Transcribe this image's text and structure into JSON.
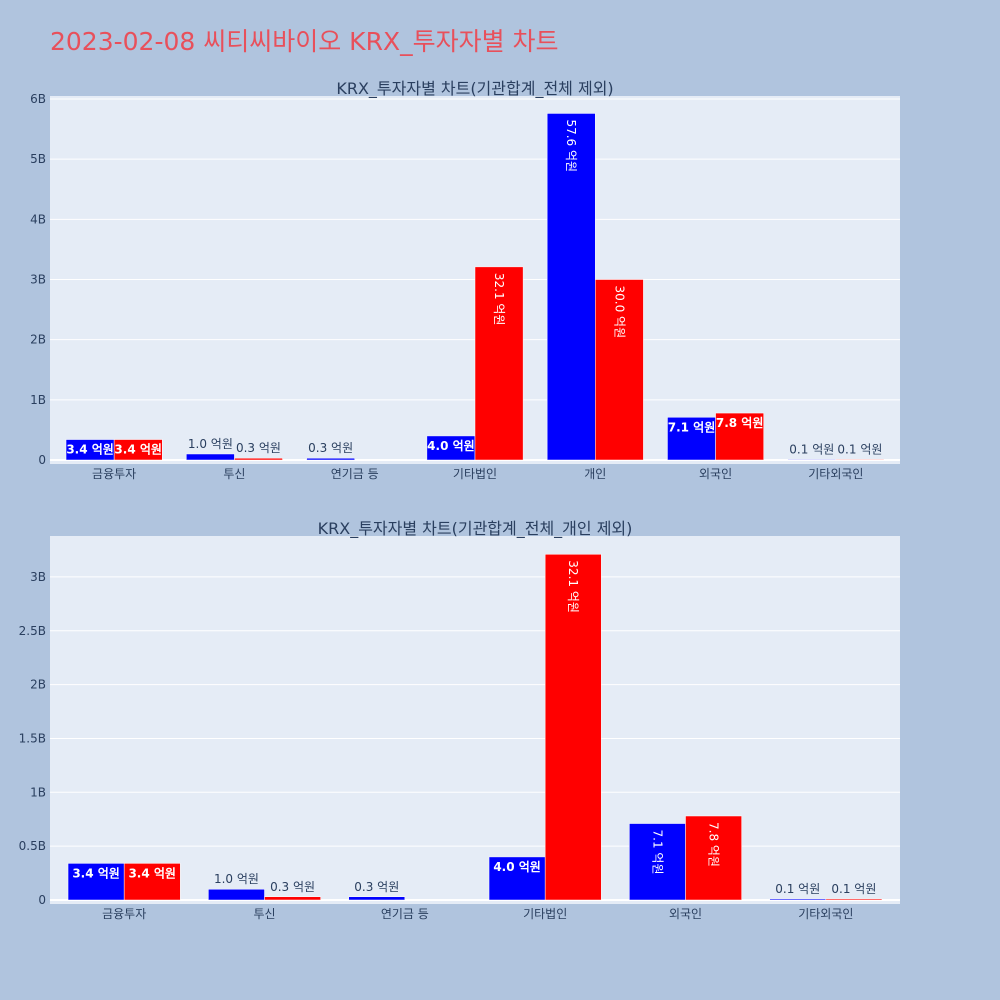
{
  "page_title": "2023-02-08 씨티씨바이오 KRX_투자자별 차트",
  "colors": {
    "background": "#b0c4de",
    "plot_bg": "#e5ecf6",
    "title": "#e8505b",
    "series_buy": "#0000ff",
    "series_sell": "#ff0000"
  },
  "chart_data": [
    {
      "type": "bar",
      "title": "KRX_투자자별 차트(기관합계_전체 제외)",
      "categories": [
        "금융투자",
        "투신",
        "연기금 등",
        "기타법인",
        "개인",
        "외국인",
        "기타외국인"
      ],
      "series": [
        {
          "color": "#0000ff",
          "values": [
            340000000,
            100000000,
            30000000,
            400000000,
            5760000000,
            710000000,
            10000000
          ],
          "labels": [
            "3.4 억원",
            "1.0 억원",
            "0.3 억원",
            "4.0 억원",
            "57.6 억원",
            "7.1 억원",
            "0.1 억원"
          ]
        },
        {
          "color": "#ff0000",
          "values": [
            340000000,
            30000000,
            0,
            3210000000,
            3000000000,
            780000000,
            10000000
          ],
          "labels": [
            "3.4 억원",
            "0.3 억원",
            "",
            "32.1 억원",
            "30.0 억원",
            "7.8 억원",
            "0.1 억원"
          ]
        }
      ],
      "yticks": [
        0,
        1000000000,
        2000000000,
        3000000000,
        4000000000,
        5000000000,
        6000000000
      ],
      "ytick_labels": [
        "0",
        "1B",
        "2B",
        "3B",
        "4B",
        "5B",
        "6B"
      ],
      "ylim": [
        0,
        6050000000
      ],
      "grid": true,
      "legend": "none"
    },
    {
      "type": "bar",
      "title": "KRX_투자자별 차트(기관합계_전체_개인 제외)",
      "categories": [
        "금융투자",
        "투신",
        "연기금 등",
        "기타법인",
        "외국인",
        "기타외국인"
      ],
      "series": [
        {
          "color": "#0000ff",
          "values": [
            340000000,
            100000000,
            30000000,
            400000000,
            710000000,
            10000000
          ],
          "labels": [
            "3.4 억원",
            "1.0 억원",
            "0.3 억원",
            "4.0 억원",
            "7.1 억원",
            "0.1 억원"
          ]
        },
        {
          "color": "#ff0000",
          "values": [
            340000000,
            30000000,
            0,
            3210000000,
            780000000,
            10000000
          ],
          "labels": [
            "3.4 억원",
            "0.3 억원",
            "",
            "32.1 억원",
            "7.8 억원",
            "0.1 억원"
          ]
        }
      ],
      "yticks": [
        0,
        500000000,
        1000000000,
        1500000000,
        2000000000,
        2500000000,
        3000000000
      ],
      "ytick_labels": [
        "0",
        "0.5B",
        "1B",
        "1.5B",
        "2B",
        "2.5B",
        "3B"
      ],
      "ylim": [
        0,
        3380000000
      ],
      "grid": true,
      "legend": "none"
    }
  ]
}
